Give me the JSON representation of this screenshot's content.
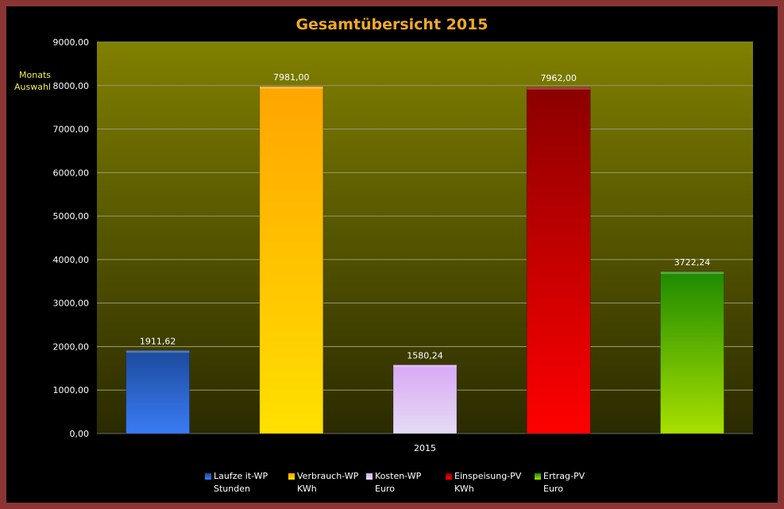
{
  "title": "Gesamtübersicht  2015",
  "side_button": {
    "line1": "Monats",
    "line2": "Auswahl"
  },
  "colors": {
    "frame": "#8b3434",
    "plot_top": "#808000",
    "plot_bottom": "#2a2a00",
    "title": "#f0a828"
  },
  "chart_data": {
    "type": "bar",
    "categories": [
      "2015"
    ],
    "ylim": [
      0,
      9000
    ],
    "y_ticks": [
      "0,00",
      "1000,00",
      "2000,00",
      "3000,00",
      "4000,00",
      "5000,00",
      "6000,00",
      "7000,00",
      "8000,00",
      "9000,00"
    ],
    "grid": true,
    "legend_position": "bottom",
    "series": [
      {
        "name": "Laufze it-WP",
        "unit": "Stunden",
        "value": 1911.62,
        "label": "1911,62",
        "color_top": "#1c4a9c",
        "color_bottom": "#3a7cf5"
      },
      {
        "name": "Verbrauch-WP",
        "unit": "KWh",
        "value": 7981.0,
        "label": "7981,00",
        "color_top": "#ffa500",
        "color_bottom": "#ffe000"
      },
      {
        "name": "Kosten-WP",
        "unit": "Euro",
        "value": 1580.24,
        "label": "1580,24",
        "color_top": "#d9a8f5",
        "color_bottom": "#e4dcf4"
      },
      {
        "name": "Einspeisung-PV",
        "unit": "KWh",
        "value": 7962.0,
        "label": "7962,00",
        "color_top": "#8b0000",
        "color_bottom": "#ff0000"
      },
      {
        "name": "Ertrag-PV",
        "unit": "Euro",
        "value": 3722.24,
        "label": "3722,24",
        "color_top": "#1e8a00",
        "color_bottom": "#a8e000"
      }
    ]
  }
}
